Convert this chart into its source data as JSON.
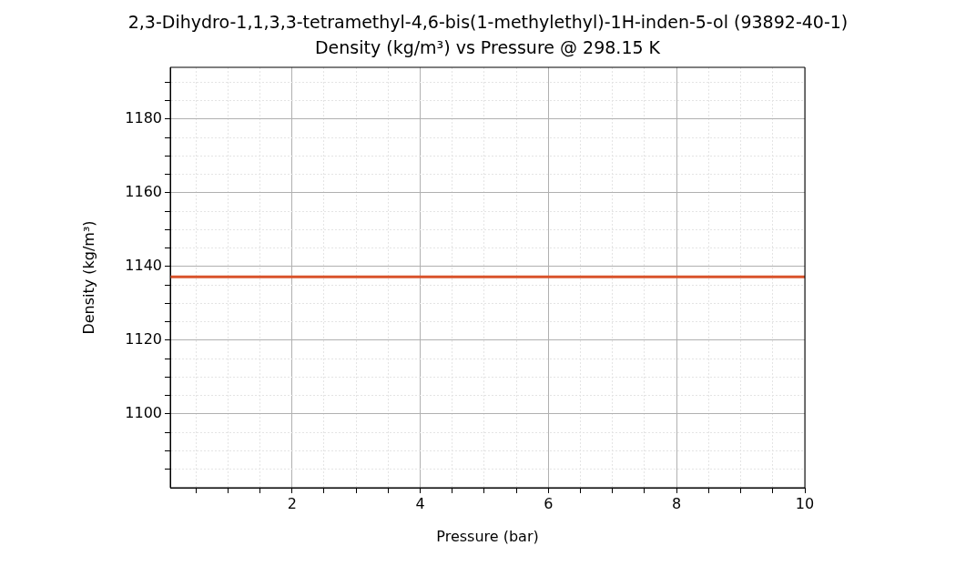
{
  "chart_data": {
    "type": "line",
    "title": "2,3-Dihydro-1,1,3,3-tetramethyl-4,6-bis(1-methylethyl)-1H-inden-5-ol (93892-40-1)",
    "subtitle": "Density (kg/m³) vs Pressure @ 298.15 K",
    "xlabel": "Pressure (bar)",
    "ylabel": "Density (kg/m³)",
    "series": [
      {
        "x": [
          0.1,
          10
        ],
        "values": [
          1137.2,
          1137.2
        ],
        "color": "#d9532b"
      }
    ],
    "xlim": [
      0.1,
      10
    ],
    "ylim": [
      1080,
      1194
    ],
    "xticks": [
      {
        "value": 0.5,
        "label": null
      },
      {
        "value": 1,
        "label": null
      },
      {
        "value": 1.5,
        "label": null
      },
      2,
      {
        "value": 2.5,
        "label": null
      },
      {
        "value": 3,
        "label": null
      },
      {
        "value": 3.5,
        "label": null
      },
      4,
      {
        "value": 4.5,
        "label": null
      },
      {
        "value": 5,
        "label": null
      },
      {
        "value": 5.5,
        "label": null
      },
      6,
      {
        "value": 6.5,
        "label": null
      },
      {
        "value": 7,
        "label": null
      },
      {
        "value": 7.5,
        "label": null
      },
      8,
      {
        "value": 8.5,
        "label": null
      },
      {
        "value": 9,
        "label": null
      },
      {
        "value": 9.5,
        "label": null
      },
      10
    ],
    "yticks": [
      {
        "value": 1085,
        "label": null
      },
      {
        "value": 1090,
        "label": null
      },
      {
        "value": 1095,
        "label": null
      },
      1100,
      {
        "value": 1105,
        "label": null
      },
      {
        "value": 1110,
        "label": null
      },
      {
        "value": 1115,
        "label": null
      },
      1120,
      {
        "value": 1125,
        "label": null
      },
      {
        "value": 1130,
        "label": null
      },
      {
        "value": 1135,
        "label": null
      },
      1140,
      {
        "value": 1145,
        "label": null
      },
      {
        "value": 1150,
        "label": null
      },
      {
        "value": 1155,
        "label": null
      },
      1160,
      {
        "value": 1165,
        "label": null
      },
      {
        "value": 1170,
        "label": null
      },
      {
        "value": 1175,
        "label": null
      },
      1180,
      {
        "value": 1185,
        "label": null
      },
      {
        "value": 1190,
        "label": null
      }
    ],
    "grid": true,
    "marker": "none",
    "line_style": "solid"
  }
}
